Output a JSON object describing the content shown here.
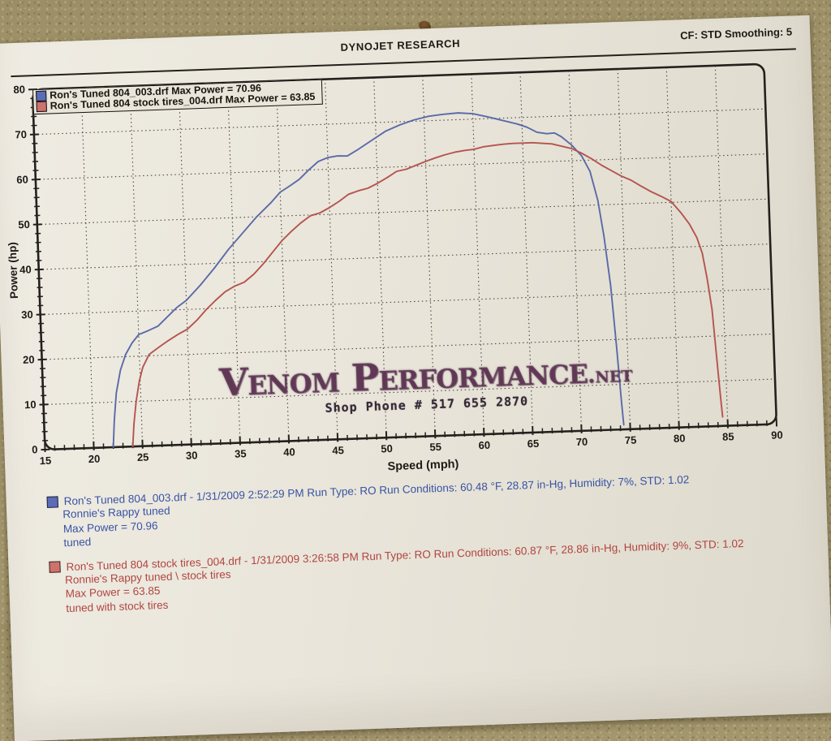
{
  "header": {
    "title": "DYNOJET RESEARCH",
    "cf_smoothing": "CF: STD  Smoothing: 5"
  },
  "watermark": {
    "name": "Venom Performance",
    "suffix": ".net",
    "phone": "Shop Phone # 517 655 2870"
  },
  "colors": {
    "blue_curve": "#5a6aa8",
    "red_curve": "#b5544f",
    "blue_swatch": "#5b6cb8",
    "red_swatch": "#cd726c",
    "blue_text": "#3853a4",
    "red_text": "#b0453f",
    "paper": "#e9e5da",
    "grid": "#4e473d",
    "frame": "#23211d"
  },
  "runs": [
    {
      "swatch": "#5b6cb8",
      "lines": [
        "Ron's Tuned 804_003.drf - 1/31/2009 2:52:29 PM  Run Type: RO  Run Conditions: 60.48 °F, 28.87 in-Hg,  Humidity:  7%, STD: 1.02",
        "Ronnie's Rappy tuned",
        "Max Power = 70.96",
        "tuned"
      ]
    },
    {
      "swatch": "#cd726c",
      "lines": [
        "Ron's Tuned 804 stock tires_004.drf - 1/31/2009 3:26:58 PM  Run Type: RO  Run Conditions: 60.87 °F, 28.86 in-Hg,  Humidity:  9%, STD: 1.02",
        "Ronnie's Rappy tuned \\ stock tires",
        "Max Power = 63.85",
        "tuned with stock tires"
      ]
    }
  ],
  "chart_data": {
    "type": "line",
    "title": "DYNOJET RESEARCH",
    "xlabel": "Speed (mph)",
    "ylabel": "Power (hp)",
    "xlim": [
      15,
      90
    ],
    "ylim": [
      0,
      80
    ],
    "x_major_tick": 5,
    "x_minor_tick": 1,
    "y_major_tick": 10,
    "y_minor_tick": 2,
    "grid": "dotted-major",
    "legend_position": "top-left-inside",
    "series": [
      {
        "name": "Ron's Tuned 804_003.drf Max Power = 70.96",
        "color": "#5a6aa8",
        "max_power_hp": 70.96,
        "points": [
          [
            22,
            0
          ],
          [
            22.2,
            6
          ],
          [
            22.5,
            12
          ],
          [
            23,
            17
          ],
          [
            23.6,
            20.5
          ],
          [
            24.3,
            23
          ],
          [
            25,
            24.8
          ],
          [
            26,
            25.6
          ],
          [
            27,
            26.5
          ],
          [
            28,
            28.5
          ],
          [
            29,
            30.5
          ],
          [
            30,
            32
          ],
          [
            31.5,
            35.3
          ],
          [
            33,
            39
          ],
          [
            34.5,
            43
          ],
          [
            36,
            46.5
          ],
          [
            37.5,
            50
          ],
          [
            39,
            53
          ],
          [
            40,
            55.3
          ],
          [
            41,
            56.6
          ],
          [
            42,
            58
          ],
          [
            43,
            60
          ],
          [
            44,
            61.8
          ],
          [
            45,
            62.6
          ],
          [
            46,
            62.9
          ],
          [
            47,
            62.8
          ],
          [
            48,
            64
          ],
          [
            49.5,
            66
          ],
          [
            51,
            68
          ],
          [
            52.5,
            69.3
          ],
          [
            54,
            70.3
          ],
          [
            55.5,
            71
          ],
          [
            57,
            71.3
          ],
          [
            58.5,
            71.5
          ],
          [
            60,
            71.2
          ],
          [
            61.5,
            70.4
          ],
          [
            63,
            69.5
          ],
          [
            64.5,
            68.6
          ],
          [
            65.5,
            67.8
          ],
          [
            66.5,
            66.6
          ],
          [
            67.5,
            66.2
          ],
          [
            68.3,
            66.3
          ],
          [
            69,
            65.4
          ],
          [
            70,
            63.5
          ],
          [
            71,
            61
          ],
          [
            71.8,
            57.5
          ],
          [
            72.5,
            51
          ],
          [
            73,
            43
          ],
          [
            73.5,
            32
          ],
          [
            73.9,
            18
          ],
          [
            74.2,
            6
          ],
          [
            74.35,
            1
          ]
        ]
      },
      {
        "name": "Ron's Tuned 804 stock tires_004.drf Max Power = 63.85",
        "color": "#b5544f",
        "max_power_hp": 63.85,
        "points": [
          [
            24,
            0
          ],
          [
            24.2,
            5
          ],
          [
            24.5,
            10
          ],
          [
            24.9,
            14.5
          ],
          [
            25.3,
            17.5
          ],
          [
            26,
            20.3
          ],
          [
            27,
            21.8
          ],
          [
            28,
            23.2
          ],
          [
            29,
            24.5
          ],
          [
            30,
            25.6
          ],
          [
            31,
            27.5
          ],
          [
            32,
            29.8
          ],
          [
            33,
            31.8
          ],
          [
            34,
            33.6
          ],
          [
            35,
            34.8
          ],
          [
            36,
            35.6
          ],
          [
            37,
            37.3
          ],
          [
            38,
            39.5
          ],
          [
            39,
            42
          ],
          [
            40,
            44.5
          ],
          [
            41,
            46.5
          ],
          [
            42,
            48.3
          ],
          [
            43,
            49.8
          ],
          [
            44,
            50.4
          ],
          [
            45,
            51.5
          ],
          [
            46,
            52.8
          ],
          [
            47,
            54.3
          ],
          [
            48,
            55
          ],
          [
            49,
            55.5
          ],
          [
            50,
            56.5
          ],
          [
            51,
            57.7
          ],
          [
            52,
            59
          ],
          [
            53,
            59.4
          ],
          [
            54,
            60.2
          ],
          [
            55,
            61
          ],
          [
            56,
            61.7
          ],
          [
            57,
            62.3
          ],
          [
            58,
            62.8
          ],
          [
            59,
            63.1
          ],
          [
            60,
            63.3
          ],
          [
            61,
            63.8
          ],
          [
            62,
            64
          ],
          [
            63,
            64.2
          ],
          [
            64,
            64.3
          ],
          [
            65,
            64.3
          ],
          [
            66,
            64.3
          ],
          [
            67,
            64.1
          ],
          [
            68,
            63.9
          ],
          [
            69,
            63.3
          ],
          [
            70,
            62.7
          ],
          [
            71,
            61.6
          ],
          [
            72,
            60.3
          ],
          [
            73,
            58.8
          ],
          [
            74,
            57.5
          ],
          [
            75,
            56.2
          ],
          [
            76,
            55.2
          ],
          [
            77,
            53.8
          ],
          [
            78,
            52.5
          ],
          [
            79,
            51.4
          ],
          [
            80,
            50.2
          ],
          [
            81,
            47.5
          ],
          [
            81.8,
            45
          ],
          [
            82.5,
            42
          ],
          [
            83,
            38.5
          ],
          [
            83.4,
            33
          ],
          [
            83.8,
            26
          ],
          [
            84,
            19
          ],
          [
            84.2,
            12
          ],
          [
            84.4,
            5
          ],
          [
            84.5,
            2
          ]
        ]
      }
    ]
  }
}
